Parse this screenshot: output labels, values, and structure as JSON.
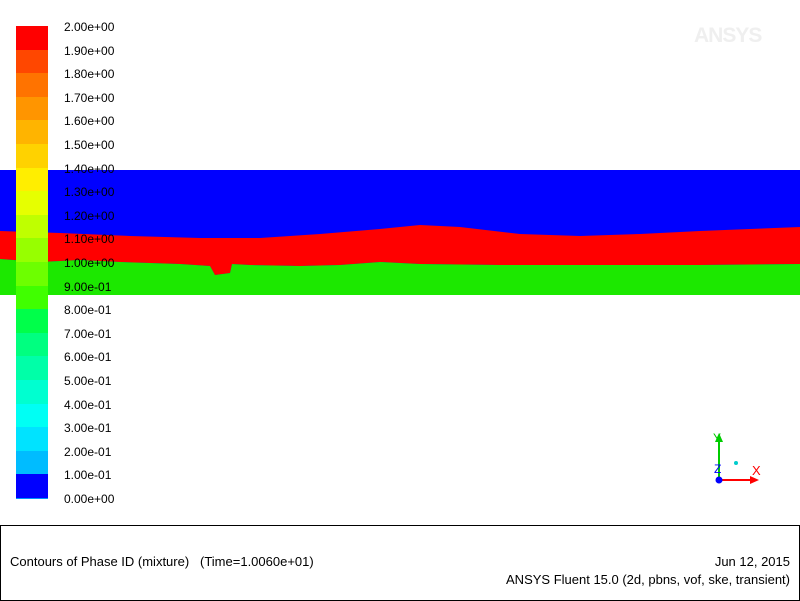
{
  "colorbar": {
    "labels": [
      "2.00e+00",
      "1.90e+00",
      "1.80e+00",
      "1.70e+00",
      "1.60e+00",
      "1.50e+00",
      "1.40e+00",
      "1.30e+00",
      "1.20e+00",
      "1.10e+00",
      "1.00e+00",
      "9.00e-01",
      "8.00e-01",
      "7.00e-01",
      "6.00e-01",
      "5.00e-01",
      "4.00e-01",
      "3.00e-01",
      "2.00e-01",
      "1.00e-01",
      "0.00e+00"
    ],
    "colors": [
      "#ff0000",
      "#ff4700",
      "#ff7300",
      "#ff9500",
      "#ffb400",
      "#ffd200",
      "#ffee00",
      "#e6ff00",
      "#bfff00",
      "#97ff00",
      "#6dff00",
      "#40ff00",
      "#00ff4a",
      "#00ff80",
      "#00ffa8",
      "#00ffd0",
      "#00fff4",
      "#00e3ff",
      "#00bcff",
      "#0093ff",
      "#0066ff"
    ],
    "bottom_color": "#0000ff"
  },
  "contour": {
    "phase_colors": {
      "upper": "#0000ff",
      "middle": "#ff0000",
      "lower": "#1ce800"
    }
  },
  "logo": {
    "text": "ANSYS"
  },
  "axes": {
    "y_label": "Y",
    "z_label": "Z",
    "x_label": "X"
  },
  "caption": {
    "title": "Contours of Phase ID (mixture)   (Time=1.0060e+01)",
    "date": "Jun 12, 2015",
    "solver": "ANSYS Fluent 15.0 (2d, pbns, vof, ske, transient)"
  }
}
